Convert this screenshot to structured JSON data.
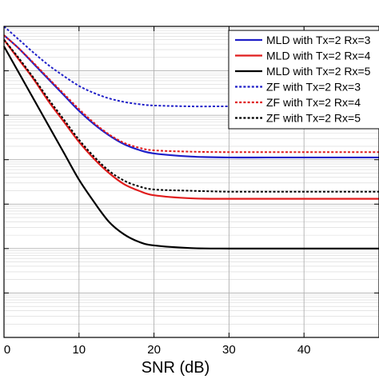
{
  "chart_data": {
    "type": "line",
    "title": "",
    "xlabel": "SNR (dB)",
    "ylabel": "",
    "xlim": [
      0,
      50
    ],
    "x_ticks": [
      0,
      10,
      20,
      30,
      40
    ],
    "y_scale": "log",
    "ylim_decades": [
      -7,
      0
    ],
    "grid": true,
    "legend_placement": "top-right",
    "x": [
      0,
      2,
      4,
      6,
      8,
      10,
      12,
      14,
      16,
      18,
      20,
      25,
      30,
      35,
      40,
      45,
      50
    ],
    "series": [
      {
        "name": "MLD with Tx=2 Rx=3",
        "color": "#1f1fc8",
        "dash": "solid",
        "log10_values": [
          -0.2,
          -0.5,
          -0.85,
          -1.2,
          -1.55,
          -1.9,
          -2.2,
          -2.45,
          -2.65,
          -2.78,
          -2.86,
          -2.93,
          -2.95,
          -2.95,
          -2.95,
          -2.95,
          -2.95
        ]
      },
      {
        "name": "MLD with Tx=2 Rx=4",
        "color": "#e01c1c",
        "dash": "solid",
        "log10_values": [
          -0.3,
          -0.75,
          -1.2,
          -1.7,
          -2.15,
          -2.6,
          -2.98,
          -3.3,
          -3.55,
          -3.7,
          -3.8,
          -3.87,
          -3.88,
          -3.88,
          -3.88,
          -3.88,
          -3.88
        ]
      },
      {
        "name": "MLD with Tx=2 Rx=5",
        "color": "#000000",
        "dash": "solid",
        "log10_values": [
          -0.45,
          -1.05,
          -1.65,
          -2.25,
          -2.85,
          -3.45,
          -3.95,
          -4.4,
          -4.68,
          -4.85,
          -4.93,
          -4.99,
          -5.0,
          -5.0,
          -5.0,
          -5.0,
          -5.0
        ]
      },
      {
        "name": "ZF with Tx=2 Rx=3",
        "color": "#1f1fc8",
        "dash": "dotted",
        "log10_values": [
          0.0,
          -0.3,
          -0.6,
          -0.88,
          -1.12,
          -1.34,
          -1.5,
          -1.62,
          -1.7,
          -1.75,
          -1.78,
          -1.8,
          -1.8,
          -1.81,
          -1.81,
          -1.81,
          -1.81
        ]
      },
      {
        "name": "ZF with Tx=2 Rx=4",
        "color": "#e01c1c",
        "dash": "dotted",
        "log10_values": [
          -0.2,
          -0.5,
          -0.83,
          -1.18,
          -1.52,
          -1.86,
          -2.17,
          -2.43,
          -2.62,
          -2.73,
          -2.79,
          -2.82,
          -2.83,
          -2.83,
          -2.83,
          -2.83,
          -2.83
        ]
      },
      {
        "name": "ZF with Tx=2 Rx=5",
        "color": "#000000",
        "dash": "dotted",
        "log10_values": [
          -0.3,
          -0.72,
          -1.17,
          -1.65,
          -2.1,
          -2.55,
          -2.93,
          -3.25,
          -3.47,
          -3.6,
          -3.67,
          -3.7,
          -3.72,
          -3.72,
          -3.72,
          -3.72,
          -3.72
        ]
      }
    ]
  }
}
